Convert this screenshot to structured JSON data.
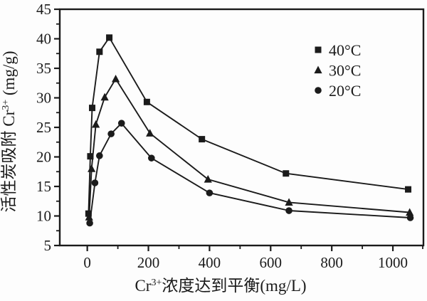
{
  "chart_data": {
    "type": "line",
    "title": "",
    "xlabel": {
      "pre": "Cr",
      "sup": "3+",
      "post": "浓度达到平衡(mg/L)"
    },
    "ylabel": {
      "pre": "活性炭吸附 Cr",
      "sup": "3+",
      "post": " (mg/g)"
    },
    "xlim": [
      -90,
      1100
    ],
    "ylim": [
      5,
      45
    ],
    "x_major_ticks": [
      0,
      200,
      400,
      600,
      800,
      1000
    ],
    "x_minor_ticks": [
      100,
      300,
      500,
      700,
      900,
      1100
    ],
    "y_major_ticks": [
      5,
      10,
      15,
      20,
      25,
      30,
      35,
      40,
      45
    ],
    "y_minor_ticks": [
      7.5,
      12.5,
      17.5,
      22.5,
      27.5,
      32.5,
      37.5,
      42.5
    ],
    "grid": false,
    "legend_position": "upper-right",
    "ink_color": "#1b1b1b",
    "background_color": "#fdfdfd",
    "series": [
      {
        "name": "40°C",
        "marker": "square",
        "points": [
          [
            4,
            10.4
          ],
          [
            10,
            20.1
          ],
          [
            16,
            28.3
          ],
          [
            40,
            37.8
          ],
          [
            72,
            40.2
          ],
          [
            195,
            29.3
          ],
          [
            375,
            23.0
          ],
          [
            650,
            17.2
          ],
          [
            1050,
            14.5
          ]
        ]
      },
      {
        "name": "30°C",
        "marker": "triangle",
        "points": [
          [
            6,
            9.8
          ],
          [
            14,
            18.0
          ],
          [
            28,
            25.5
          ],
          [
            57,
            30.1
          ],
          [
            93,
            33.2
          ],
          [
            205,
            24.0
          ],
          [
            395,
            16.2
          ],
          [
            660,
            12.3
          ],
          [
            1055,
            10.6
          ]
        ]
      },
      {
        "name": "20°C",
        "marker": "circle",
        "points": [
          [
            8,
            8.8
          ],
          [
            25,
            15.6
          ],
          [
            40,
            20.2
          ],
          [
            78,
            23.9
          ],
          [
            112,
            25.7
          ],
          [
            210,
            19.8
          ],
          [
            400,
            13.9
          ],
          [
            660,
            10.9
          ],
          [
            1057,
            9.7
          ]
        ]
      }
    ]
  }
}
